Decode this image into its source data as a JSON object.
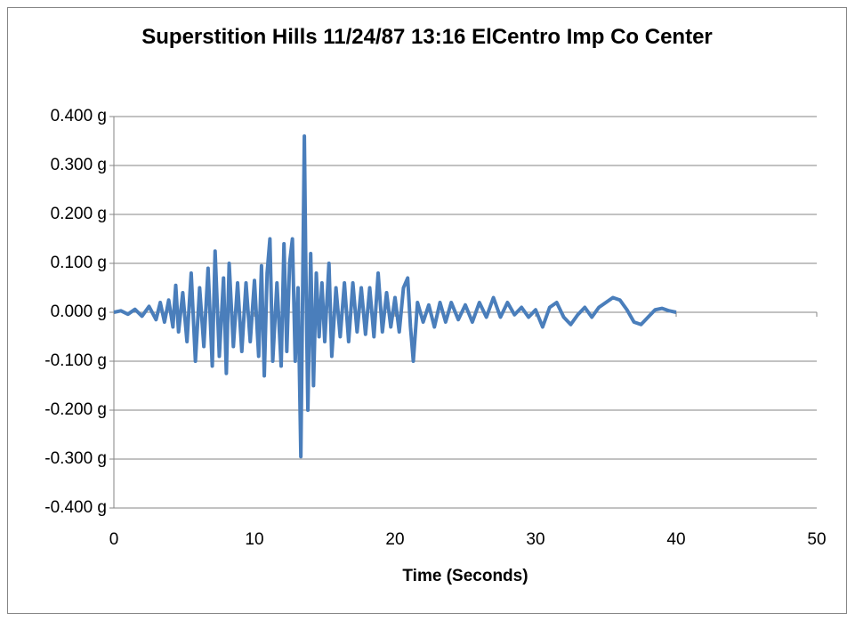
{
  "chart_data": {
    "type": "line",
    "title": "Superstition Hills 11/24/87 13:16 ElCentro Imp Co Center",
    "x_label": "Time (Seconds)",
    "xlim": [
      0,
      50
    ],
    "xticks": [
      0,
      10,
      20,
      30,
      40,
      50
    ],
    "ylim": [
      -0.4,
      0.4
    ],
    "yticks": [
      {
        "value": -0.4,
        "label": "-0.400 g"
      },
      {
        "value": -0.3,
        "label": "-0.300 g"
      },
      {
        "value": -0.2,
        "label": "-0.200 g"
      },
      {
        "value": -0.1,
        "label": "-0.100 g"
      },
      {
        "value": 0,
        "label": "0.000 g"
      },
      {
        "value": 0.1,
        "label": "0.100 g"
      },
      {
        "value": 0.2,
        "label": "0.200 g"
      },
      {
        "value": 0.3,
        "label": "0.300 g"
      },
      {
        "value": 0.4,
        "label": "0.400 g"
      }
    ],
    "grid": true,
    "series": [
      {
        "color": "#4a7ebb",
        "x": [
          0,
          0.5,
          1,
          1.5,
          2,
          2.5,
          3,
          3.3,
          3.6,
          3.9,
          4.2,
          4.4,
          4.6,
          4.9,
          5.2,
          5.5,
          5.8,
          6.1,
          6.4,
          6.7,
          7.0,
          7.2,
          7.5,
          7.8,
          8.0,
          8.2,
          8.5,
          8.8,
          9.1,
          9.4,
          9.7,
          10.0,
          10.3,
          10.5,
          10.7,
          10.9,
          11.1,
          11.3,
          11.6,
          11.9,
          12.1,
          12.3,
          12.5,
          12.7,
          12.9,
          13.1,
          13.3,
          13.45,
          13.55,
          13.65,
          13.8,
          14.0,
          14.2,
          14.4,
          14.6,
          14.8,
          15.0,
          15.3,
          15.5,
          15.8,
          16.1,
          16.4,
          16.7,
          17.0,
          17.3,
          17.6,
          17.9,
          18.2,
          18.5,
          18.8,
          19.1,
          19.4,
          19.7,
          20.0,
          20.3,
          20.6,
          20.9,
          21.1,
          21.3,
          21.6,
          22.0,
          22.4,
          22.8,
          23.2,
          23.6,
          24.0,
          24.5,
          25.0,
          25.5,
          26.0,
          26.5,
          27.0,
          27.5,
          28.0,
          28.5,
          29.0,
          29.5,
          30.0,
          30.5,
          31.0,
          31.5,
          32.0,
          32.5,
          33.0,
          33.5,
          34.0,
          34.5,
          35.0,
          35.5,
          36.0,
          36.5,
          37.0,
          37.5,
          38.0,
          38.5,
          39.0,
          39.5,
          40.0
        ],
        "values": [
          0,
          0.003,
          -0.004,
          0.006,
          -0.008,
          0.012,
          -0.015,
          0.02,
          -0.02,
          0.025,
          -0.03,
          0.055,
          -0.04,
          0.04,
          -0.06,
          0.08,
          -0.1,
          0.05,
          -0.07,
          0.09,
          -0.11,
          0.125,
          -0.09,
          0.07,
          -0.125,
          0.1,
          -0.07,
          0.06,
          -0.08,
          0.06,
          -0.06,
          0.065,
          -0.09,
          0.095,
          -0.13,
          0.08,
          0.15,
          -0.1,
          0.06,
          -0.11,
          0.14,
          -0.08,
          0.1,
          0.15,
          -0.1,
          0.05,
          -0.295,
          0.1,
          0.36,
          0.1,
          -0.2,
          0.12,
          -0.15,
          0.08,
          -0.05,
          0.06,
          -0.06,
          0.1,
          -0.09,
          0.05,
          -0.05,
          0.06,
          -0.06,
          0.06,
          -0.04,
          0.05,
          -0.045,
          0.05,
          -0.05,
          0.08,
          -0.04,
          0.04,
          -0.03,
          0.03,
          -0.04,
          0.05,
          0.07,
          -0.03,
          -0.1,
          0.02,
          -0.02,
          0.015,
          -0.03,
          0.02,
          -0.02,
          0.02,
          -0.015,
          0.015,
          -0.02,
          0.02,
          -0.01,
          0.03,
          -0.01,
          0.02,
          -0.005,
          0.01,
          -0.01,
          0.005,
          -0.03,
          0.01,
          0.02,
          -0.01,
          -0.025,
          -0.005,
          0.01,
          -0.01,
          0.01,
          0.02,
          0.03,
          0.025,
          0.005,
          -0.02,
          -0.025,
          -0.01,
          0.005,
          0.008,
          0.003,
          0
        ]
      }
    ]
  }
}
